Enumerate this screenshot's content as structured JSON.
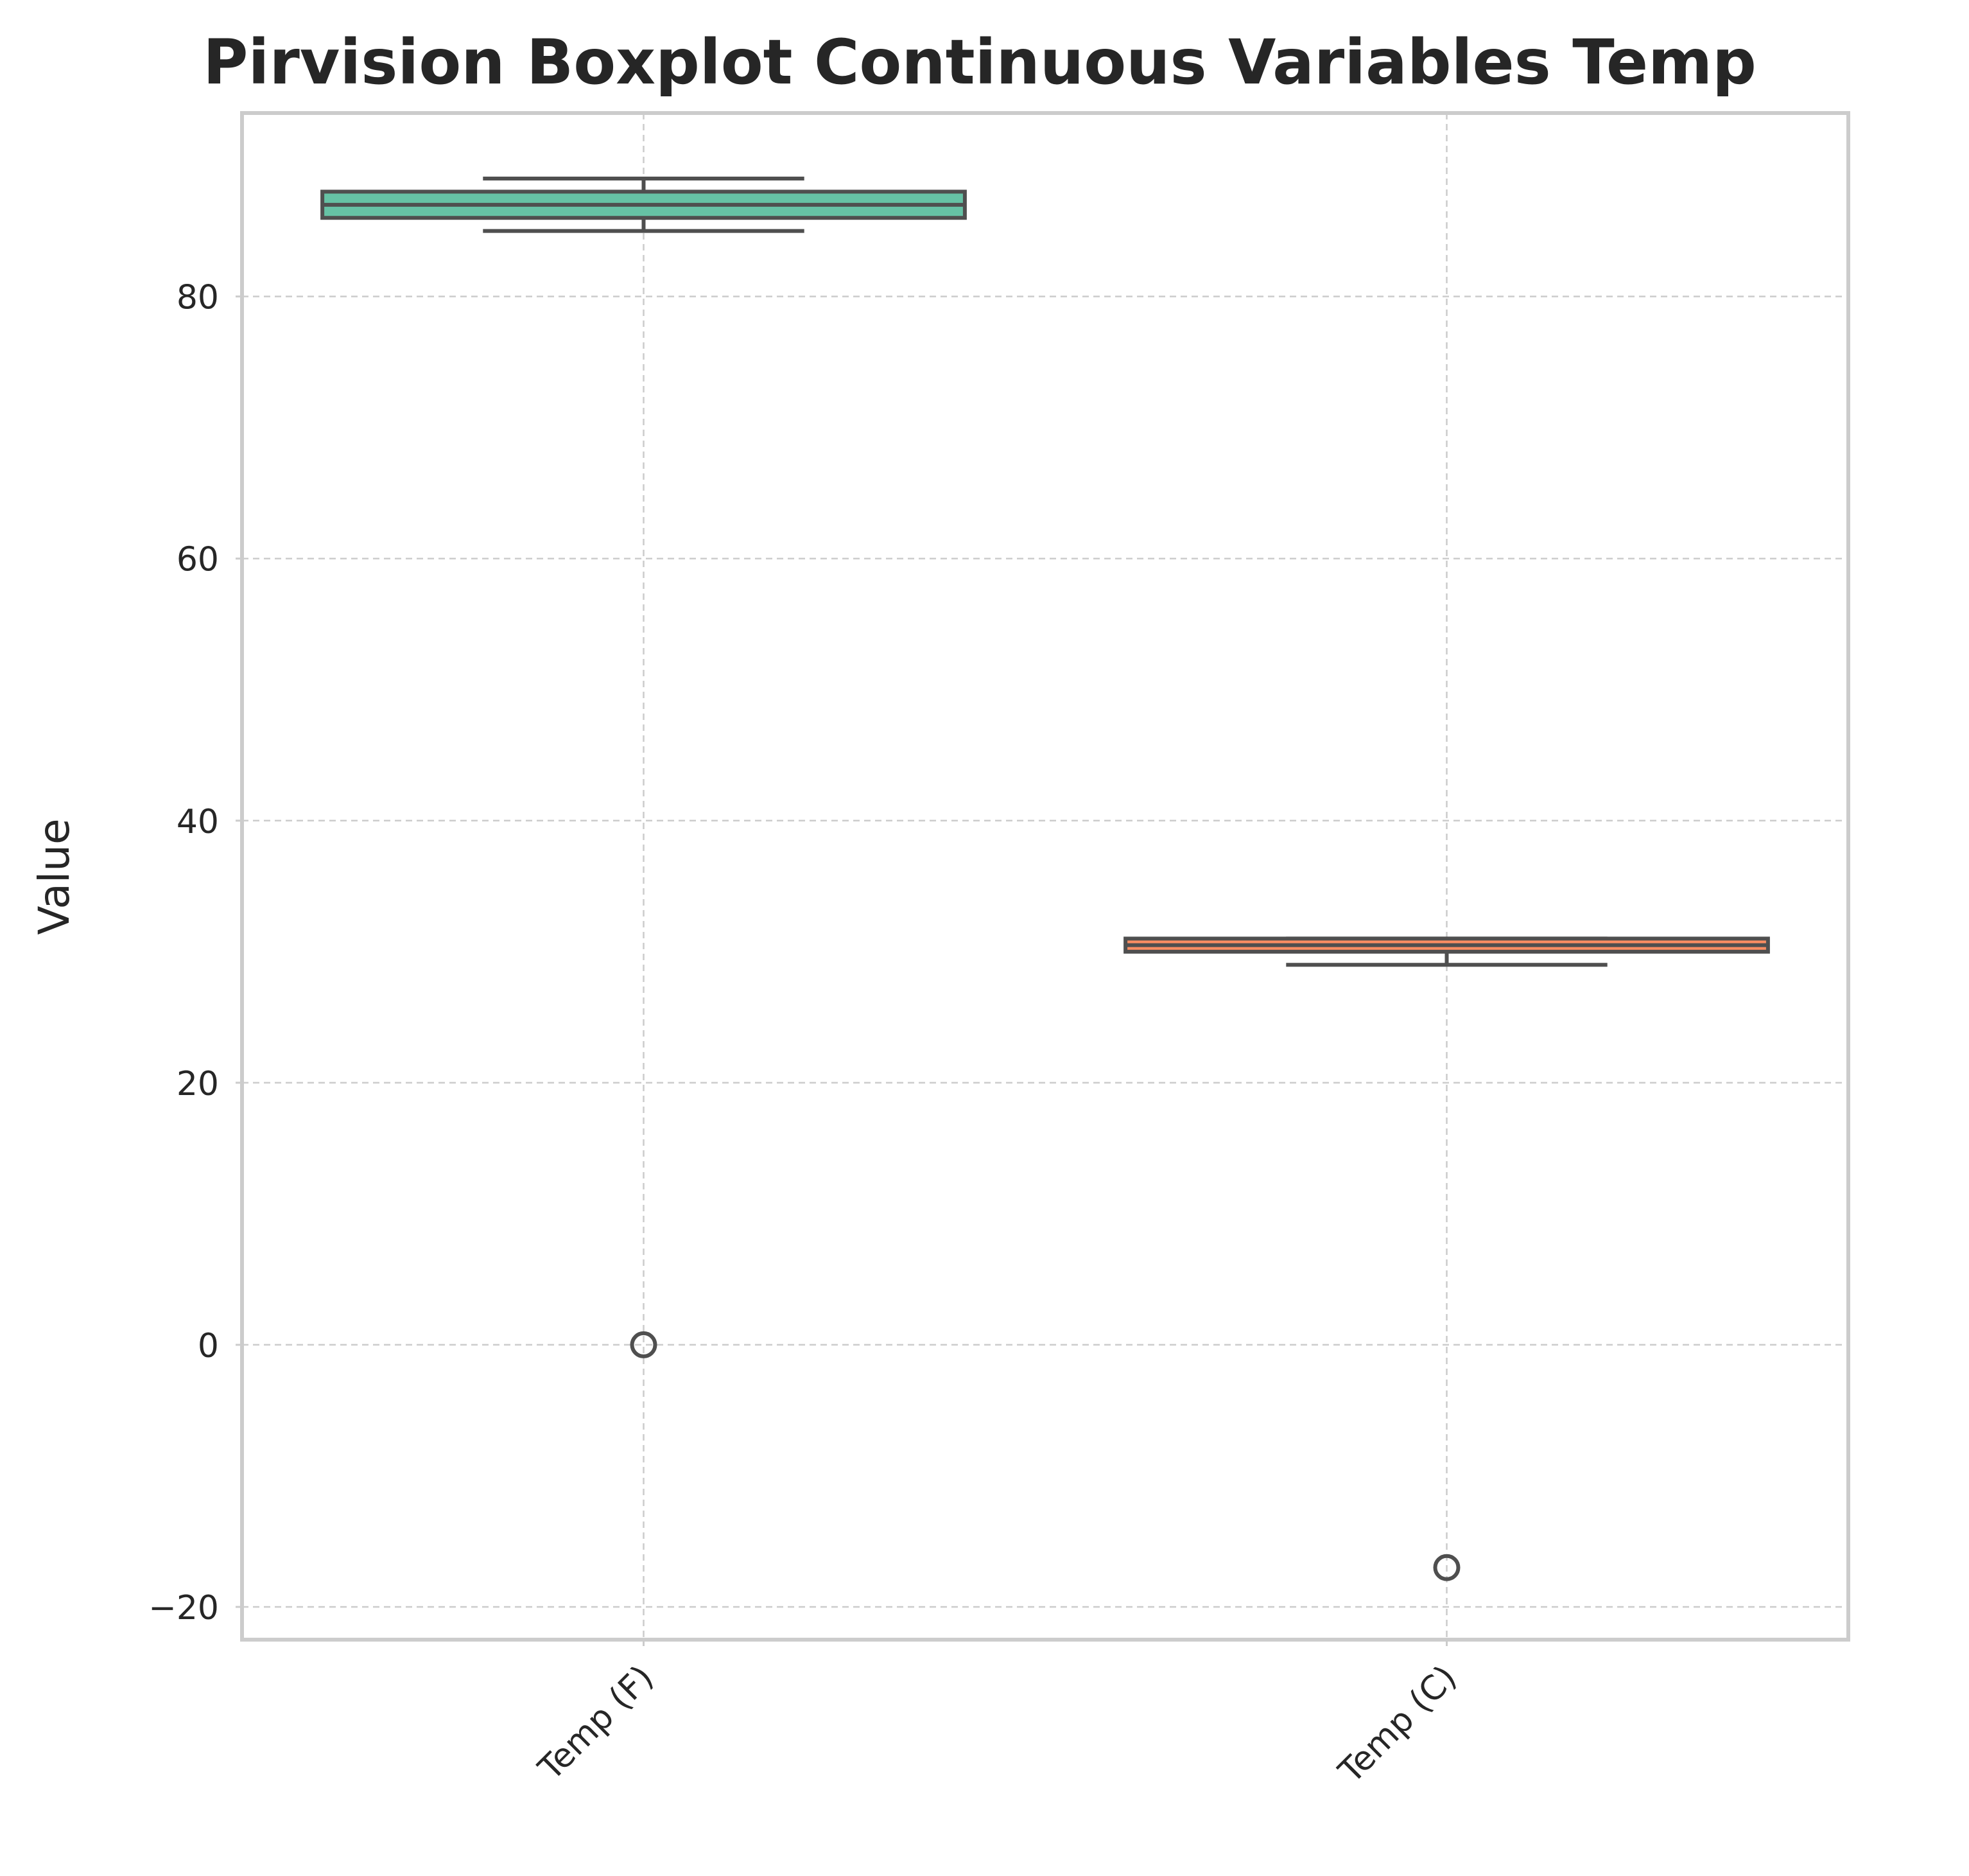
{
  "chart_data": {
    "type": "boxplot",
    "title": "Pirvision Boxplot Continuous Variables Temp",
    "xlabel": "",
    "ylabel": "Value",
    "ylim": [
      -22.5,
      94
    ],
    "yticks": [
      -20,
      0,
      20,
      40,
      60,
      80
    ],
    "ytick_labels": [
      "−20",
      "0",
      "20",
      "40",
      "60",
      "80"
    ],
    "grid": true,
    "categories": [
      "Temp (F)",
      "Temp (C)"
    ],
    "series": [
      {
        "name": "Temp (F)",
        "color": "#66c2a5",
        "whisker_low": 85,
        "q1": 86,
        "median": 87,
        "q3": 88,
        "whisker_high": 89,
        "outliers": [
          0
        ]
      },
      {
        "name": "Temp (C)",
        "color": "#fc8d62",
        "whisker_low": 29,
        "q1": 30,
        "median": 30.5,
        "q3": 31,
        "whisker_high": 31,
        "outliers": [
          -17
        ]
      }
    ]
  }
}
